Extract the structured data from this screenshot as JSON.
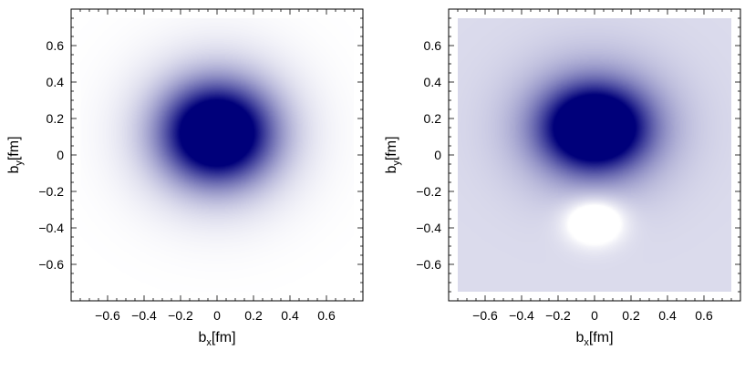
{
  "chart_data": [
    {
      "type": "heatmap",
      "title": "",
      "xlabel": {
        "base": "b",
        "sub": "x",
        "unit": "[fm]"
      },
      "ylabel": {
        "base": "b",
        "sub": "y",
        "unit": "[fm]"
      },
      "xlim": [
        -0.8,
        0.8
      ],
      "ylim": [
        -0.8,
        0.8
      ],
      "plot_range": [
        -0.75,
        0.75
      ],
      "x_ticks": [
        -0.6,
        -0.4,
        -0.2,
        0,
        0.2,
        0.4,
        0.6
      ],
      "x_tick_labels": [
        "−0.6",
        "−0.4",
        "−0.2",
        "0",
        "0.2",
        "0.4",
        "0.6"
      ],
      "y_ticks": [
        -0.6,
        -0.4,
        -0.2,
        0,
        0.2,
        0.4,
        0.6
      ],
      "y_tick_labels": [
        "−0.6",
        "−0.4",
        "−0.2",
        "0",
        "0.2",
        "0.4",
        "0.6"
      ],
      "color_low": "#ffffff",
      "color_high": "#00007a",
      "background_level": 0.0,
      "peak_center": [
        0.0,
        0.12
      ],
      "peak_width": [
        0.26,
        0.23
      ],
      "halo_width": [
        0.38,
        0.36
      ],
      "halo_amplitude": 0.35,
      "min_center": null,
      "min_width": null,
      "min_depth": 0
    },
    {
      "type": "heatmap",
      "title": "",
      "xlabel": {
        "base": "b",
        "sub": "x",
        "unit": "[fm]"
      },
      "ylabel": {
        "base": "b",
        "sub": "y",
        "unit": "[fm]"
      },
      "xlim": [
        -0.8,
        0.8
      ],
      "ylim": [
        -0.8,
        0.8
      ],
      "plot_range": [
        -0.75,
        0.75
      ],
      "x_ticks": [
        -0.6,
        -0.4,
        -0.2,
        0,
        0.2,
        0.4,
        0.6
      ],
      "x_tick_labels": [
        "−0.6",
        "−0.4",
        "−0.2",
        "0",
        "0.2",
        "0.4",
        "0.6"
      ],
      "y_ticks": [
        -0.6,
        -0.4,
        -0.2,
        0,
        0.2,
        0.4,
        0.6
      ],
      "y_tick_labels": [
        "−0.6",
        "−0.4",
        "−0.2",
        "0",
        "0.2",
        "0.4",
        "0.6"
      ],
      "color_low": "#ffffff",
      "color_high": "#00007a",
      "background_level": 0.1,
      "peak_center": [
        0.0,
        0.15
      ],
      "peak_width": [
        0.25,
        0.2
      ],
      "halo_width": [
        0.4,
        0.34
      ],
      "halo_amplitude": 0.4,
      "min_center": [
        0.0,
        -0.36
      ],
      "min_width": [
        0.16,
        0.13
      ],
      "min_depth": 0.3
    }
  ]
}
